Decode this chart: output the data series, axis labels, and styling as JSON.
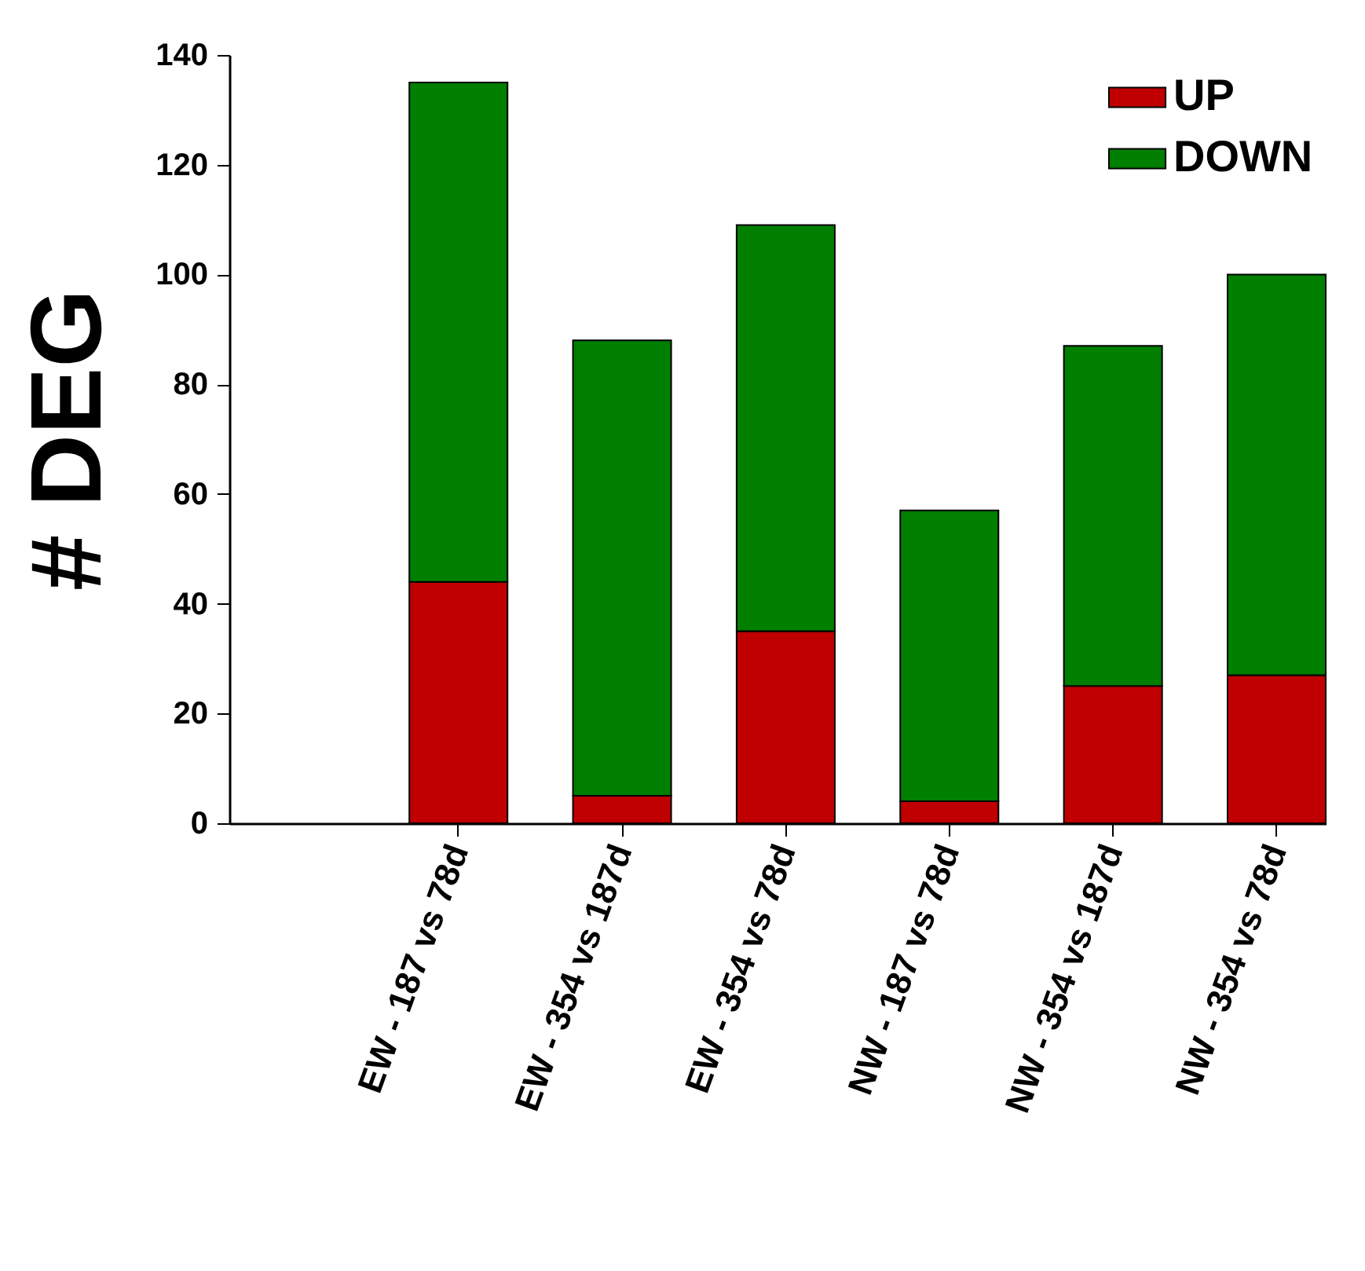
{
  "chart_data": {
    "type": "bar",
    "ylabel": "# DEG",
    "stacked": true,
    "legend": "top right",
    "grid": false,
    "categories": [
      "EW - 187 vs 78d",
      "EW - 354 vs 187d",
      "EW - 354 vs 78d",
      "NW - 187 vs 78d",
      "NW - 354 vs 187d",
      "NW - 354 vs 78d"
    ],
    "series": [
      {
        "name": "UP",
        "color": "#c00000",
        "values": [
          44,
          5,
          35,
          4,
          25,
          27
        ]
      },
      {
        "name": "DOWN",
        "color": "#007f00",
        "values": [
          91,
          83,
          74,
          53,
          62,
          73
        ]
      }
    ],
    "ylim": [
      0,
      140
    ],
    "yticks": [
      0,
      20,
      40,
      60,
      80,
      100,
      120,
      140
    ]
  }
}
